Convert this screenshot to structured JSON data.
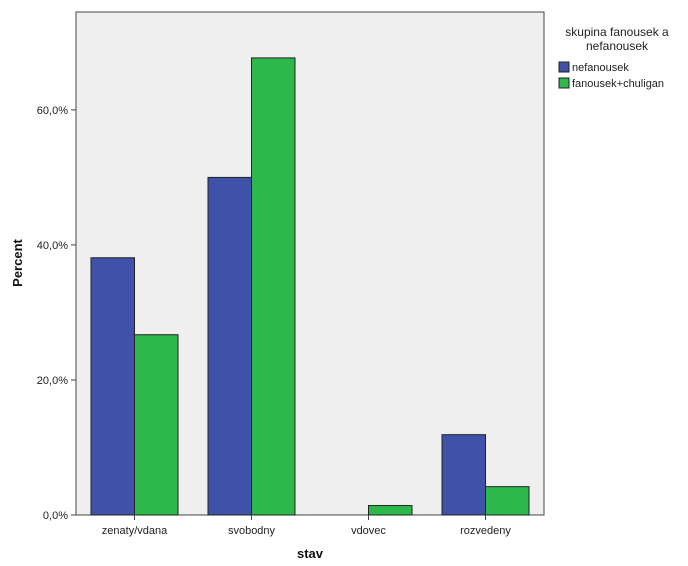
{
  "chart_data": {
    "type": "bar",
    "xlabel": "stav",
    "ylabel": "Percent",
    "categories": [
      "zenaty/vdana",
      "svobodny",
      "vdovec",
      "rozvedeny"
    ],
    "series": [
      {
        "name": "nefanousek",
        "values": [
          38.1,
          50.0,
          0.0,
          11.9
        ],
        "color": "#3f51a8"
      },
      {
        "name": "fanousek+chuligan",
        "values": [
          26.7,
          67.7,
          1.4,
          4.2
        ],
        "color": "#2cb84a"
      }
    ],
    "ylim": [
      0,
      74.5
    ],
    "yticks": [
      0,
      20,
      40,
      60
    ],
    "ytick_labels": [
      "0,0%",
      "20,0%",
      "40,0%",
      "60,0%"
    ],
    "legend": {
      "title_line1": "skupina fanousek a",
      "title_line2": "nefanousek",
      "position": "top-right"
    },
    "plot_background": "#efefef",
    "grid": false
  }
}
